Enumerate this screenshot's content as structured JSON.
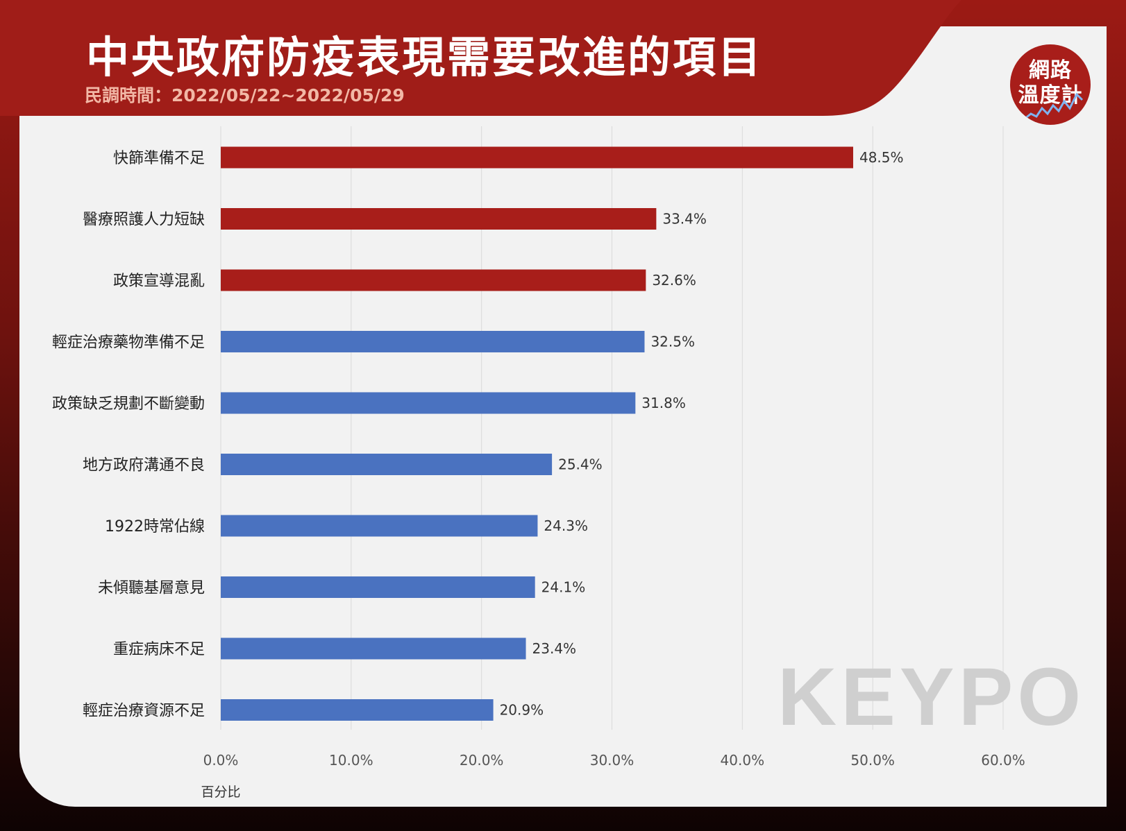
{
  "header": {
    "title": "中央政府防疫表現需要改進的項目",
    "subtitle": "民調時間：2022/05/22~2022/05/29"
  },
  "badge": {
    "line1": "網路",
    "line2": "溫度計"
  },
  "watermark": {
    "text": "KEYPO"
  },
  "colors": {
    "red": "#a81e1a",
    "blue": "#4a72c0",
    "header_red": "#a01d18"
  },
  "chart_data": {
    "type": "bar",
    "orientation": "horizontal",
    "categories": [
      "快篩準備不足",
      "醫療照護人力短缺",
      "政策宣導混亂",
      "輕症治療藥物準備不足",
      "政策缺乏規劃不斷變動",
      "地方政府溝通不良",
      "1922時常佔線",
      "未傾聽基層意見",
      "重症病床不足",
      "輕症治療資源不足"
    ],
    "values": [
      48.5,
      33.4,
      32.6,
      32.5,
      31.8,
      25.4,
      24.3,
      24.1,
      23.4,
      20.9
    ],
    "value_labels": [
      "48.5%",
      "33.4%",
      "32.6%",
      "32.5%",
      "31.8%",
      "25.4%",
      "24.3%",
      "24.1%",
      "23.4%",
      "20.9%"
    ],
    "bar_colors": [
      "#a81e1a",
      "#a81e1a",
      "#a81e1a",
      "#4a72c0",
      "#4a72c0",
      "#4a72c0",
      "#4a72c0",
      "#4a72c0",
      "#4a72c0",
      "#4a72c0"
    ],
    "xlim": [
      0,
      60
    ],
    "ticks": [
      "0.0%",
      "10.0%",
      "20.0%",
      "30.0%",
      "40.0%",
      "50.0%",
      "60.0%"
    ],
    "xlabel": "百分比",
    "grid": true
  }
}
